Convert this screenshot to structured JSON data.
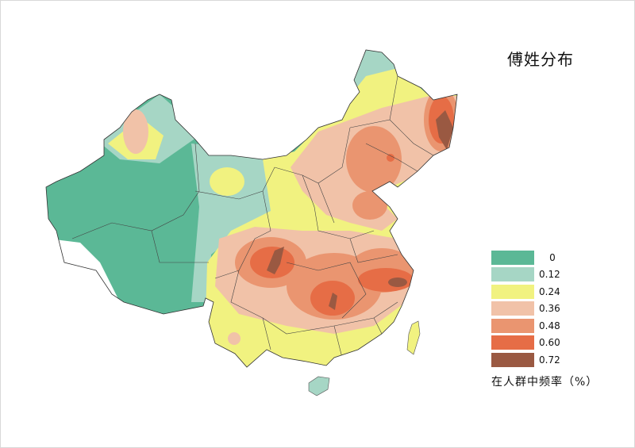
{
  "title": "傅姓分布",
  "legend": {
    "label": "在人群中频率（%）",
    "items": [
      {
        "value": "0",
        "color": "#5bb896"
      },
      {
        "value": "0.12",
        "color": "#a6d6c5"
      },
      {
        "value": "0.24",
        "color": "#f1f280"
      },
      {
        "value": "0.36",
        "color": "#f1c2a8"
      },
      {
        "value": "0.48",
        "color": "#ea9570"
      },
      {
        "value": "0.60",
        "color": "#e66d46"
      },
      {
        "value": "0.72",
        "color": "#9a5942"
      }
    ]
  }
}
